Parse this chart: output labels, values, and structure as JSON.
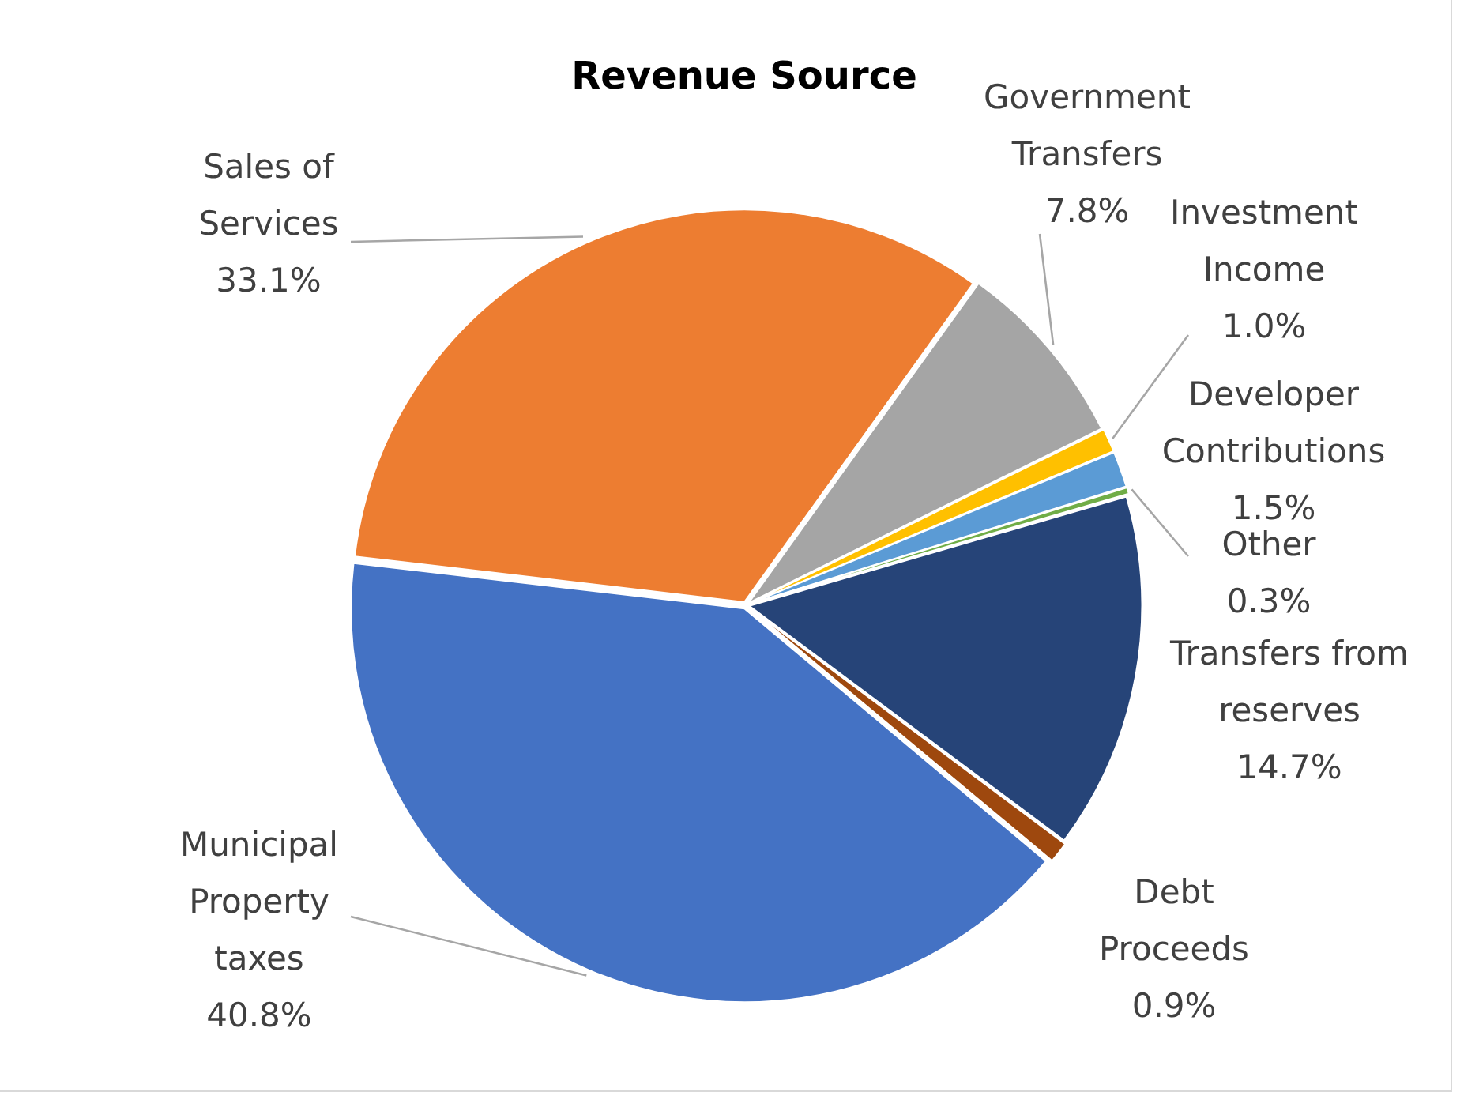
{
  "chart_data": {
    "type": "pie",
    "title": "Revenue Source",
    "categories": [
      "Government Transfers",
      "Investment Income",
      "Developer Contributions",
      "Other",
      "Transfers from reserves",
      "Debt Proceeds",
      "Municipal Property taxes",
      "Sales of Services"
    ],
    "values": [
      7.8,
      1.0,
      1.5,
      0.3,
      14.7,
      0.9,
      40.8,
      33.1
    ],
    "value_labels": [
      "7.8%",
      "1.0%",
      "1.5%",
      "0.3%",
      "14.7%",
      "0.9%",
      "40.8%",
      "33.1%"
    ],
    "colors": [
      "#a5a5a5",
      "#ffc000",
      "#5b9bd5",
      "#70ad47",
      "#264478",
      "#9e480e",
      "#4472c4",
      "#ed7d31"
    ],
    "legend": false
  }
}
